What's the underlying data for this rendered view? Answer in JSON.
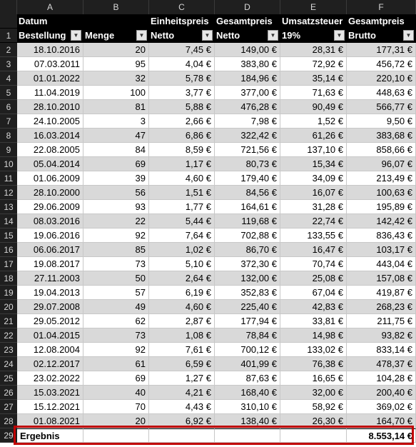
{
  "columns": [
    "A",
    "B",
    "C",
    "D",
    "E",
    "F"
  ],
  "header": {
    "line1": [
      "Datum",
      "",
      "Einheitspreis",
      "Gesamtpreis",
      "Umsatzsteuer",
      "Gesamtpreis"
    ],
    "line2": [
      "Bestellung",
      "Menge",
      "Netto",
      "Netto",
      "19%",
      "Brutto"
    ],
    "filter_icon": "dropdown-arrow-icon"
  },
  "rows": [
    {
      "n": "2",
      "date": "18.10.2016",
      "qty": "20",
      "unit": "7,45 €",
      "net": "149,00 €",
      "vat": "28,31 €",
      "gross": "177,31 €"
    },
    {
      "n": "3",
      "date": "07.03.2011",
      "qty": "95",
      "unit": "4,04 €",
      "net": "383,80 €",
      "vat": "72,92 €",
      "gross": "456,72 €"
    },
    {
      "n": "4",
      "date": "01.01.2022",
      "qty": "32",
      "unit": "5,78 €",
      "net": "184,96 €",
      "vat": "35,14 €",
      "gross": "220,10 €"
    },
    {
      "n": "5",
      "date": "11.04.2019",
      "qty": "100",
      "unit": "3,77 €",
      "net": "377,00 €",
      "vat": "71,63 €",
      "gross": "448,63 €"
    },
    {
      "n": "6",
      "date": "28.10.2010",
      "qty": "81",
      "unit": "5,88 €",
      "net": "476,28 €",
      "vat": "90,49 €",
      "gross": "566,77 €"
    },
    {
      "n": "7",
      "date": "24.10.2005",
      "qty": "3",
      "unit": "2,66 €",
      "net": "7,98 €",
      "vat": "1,52 €",
      "gross": "9,50 €"
    },
    {
      "n": "8",
      "date": "16.03.2014",
      "qty": "47",
      "unit": "6,86 €",
      "net": "322,42 €",
      "vat": "61,26 €",
      "gross": "383,68 €"
    },
    {
      "n": "9",
      "date": "22.08.2005",
      "qty": "84",
      "unit": "8,59 €",
      "net": "721,56 €",
      "vat": "137,10 €",
      "gross": "858,66 €"
    },
    {
      "n": "10",
      "date": "05.04.2014",
      "qty": "69",
      "unit": "1,17 €",
      "net": "80,73 €",
      "vat": "15,34 €",
      "gross": "96,07 €"
    },
    {
      "n": "11",
      "date": "01.06.2009",
      "qty": "39",
      "unit": "4,60 €",
      "net": "179,40 €",
      "vat": "34,09 €",
      "gross": "213,49 €"
    },
    {
      "n": "12",
      "date": "28.10.2000",
      "qty": "56",
      "unit": "1,51 €",
      "net": "84,56 €",
      "vat": "16,07 €",
      "gross": "100,63 €"
    },
    {
      "n": "13",
      "date": "29.06.2009",
      "qty": "93",
      "unit": "1,77 €",
      "net": "164,61 €",
      "vat": "31,28 €",
      "gross": "195,89 €"
    },
    {
      "n": "14",
      "date": "08.03.2016",
      "qty": "22",
      "unit": "5,44 €",
      "net": "119,68 €",
      "vat": "22,74 €",
      "gross": "142,42 €"
    },
    {
      "n": "15",
      "date": "19.06.2016",
      "qty": "92",
      "unit": "7,64 €",
      "net": "702,88 €",
      "vat": "133,55 €",
      "gross": "836,43 €"
    },
    {
      "n": "16",
      "date": "06.06.2017",
      "qty": "85",
      "unit": "1,02 €",
      "net": "86,70 €",
      "vat": "16,47 €",
      "gross": "103,17 €"
    },
    {
      "n": "17",
      "date": "19.08.2017",
      "qty": "73",
      "unit": "5,10 €",
      "net": "372,30 €",
      "vat": "70,74 €",
      "gross": "443,04 €"
    },
    {
      "n": "18",
      "date": "27.11.2003",
      "qty": "50",
      "unit": "2,64 €",
      "net": "132,00 €",
      "vat": "25,08 €",
      "gross": "157,08 €"
    },
    {
      "n": "19",
      "date": "19.04.2013",
      "qty": "57",
      "unit": "6,19 €",
      "net": "352,83 €",
      "vat": "67,04 €",
      "gross": "419,87 €"
    },
    {
      "n": "20",
      "date": "29.07.2008",
      "qty": "49",
      "unit": "4,60 €",
      "net": "225,40 €",
      "vat": "42,83 €",
      "gross": "268,23 €"
    },
    {
      "n": "21",
      "date": "29.05.2012",
      "qty": "62",
      "unit": "2,87 €",
      "net": "177,94 €",
      "vat": "33,81 €",
      "gross": "211,75 €"
    },
    {
      "n": "22",
      "date": "01.04.2015",
      "qty": "73",
      "unit": "1,08 €",
      "net": "78,84 €",
      "vat": "14,98 €",
      "gross": "93,82 €"
    },
    {
      "n": "23",
      "date": "12.08.2004",
      "qty": "92",
      "unit": "7,61 €",
      "net": "700,12 €",
      "vat": "133,02 €",
      "gross": "833,14 €"
    },
    {
      "n": "24",
      "date": "02.12.2017",
      "qty": "61",
      "unit": "6,59 €",
      "net": "401,99 €",
      "vat": "76,38 €",
      "gross": "478,37 €"
    },
    {
      "n": "25",
      "date": "23.02.2022",
      "qty": "69",
      "unit": "1,27 €",
      "net": "87,63 €",
      "vat": "16,65 €",
      "gross": "104,28 €"
    },
    {
      "n": "26",
      "date": "15.03.2021",
      "qty": "40",
      "unit": "4,21 €",
      "net": "168,40 €",
      "vat": "32,00 €",
      "gross": "200,40 €"
    },
    {
      "n": "27",
      "date": "15.12.2021",
      "qty": "70",
      "unit": "4,43 €",
      "net": "310,10 €",
      "vat": "58,92 €",
      "gross": "369,02 €"
    },
    {
      "n": "28",
      "date": "01.08.2021",
      "qty": "20",
      "unit": "6,92 €",
      "net": "138,40 €",
      "vat": "26,30 €",
      "gross": "164,70 €"
    }
  ],
  "total": {
    "n": "29",
    "label": "Ergebnis",
    "gross": "8.553,14 €"
  },
  "highlight_color": "#c00000",
  "band_color": "#d9d9d9"
}
